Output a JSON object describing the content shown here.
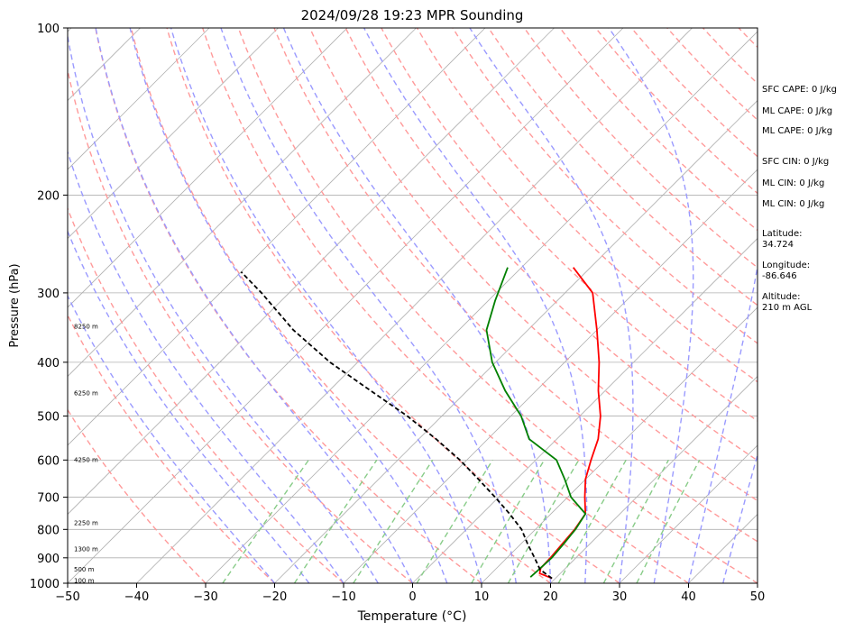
{
  "chart_data": {
    "type": "line",
    "title": "2024/09/28 19:23 MPR Sounding",
    "xlabel": "Temperature (°C)",
    "ylabel": "Pressure (hPa)",
    "xlim": [
      -50,
      50
    ],
    "ylim": [
      1000,
      100
    ],
    "y_scale": "log",
    "skew": true,
    "x_ticks": [
      "−50",
      "−40",
      "−30",
      "−20",
      "−10",
      "0",
      "10",
      "20",
      "30",
      "40",
      "50"
    ],
    "x_tick_values": [
      -50,
      -40,
      -30,
      -20,
      -10,
      0,
      10,
      20,
      30,
      40,
      50
    ],
    "y_ticks": [
      "1000",
      "900",
      "800",
      "700",
      "600",
      "500",
      "400",
      "300",
      "200",
      "100"
    ],
    "y_tick_values": [
      1000,
      900,
      800,
      700,
      600,
      500,
      400,
      300,
      200,
      100
    ],
    "grid": true,
    "series": [
      {
        "role": "temperature",
        "color": "#ff0000",
        "points": [
          [
            19.5,
            980
          ],
          [
            17,
            960
          ],
          [
            16.4,
            940
          ],
          [
            16.3,
            900
          ],
          [
            16,
            850
          ],
          [
            15.7,
            800
          ],
          [
            15,
            750
          ],
          [
            12.5,
            700
          ],
          [
            10,
            650
          ],
          [
            8,
            600
          ],
          [
            6,
            550
          ],
          [
            3,
            500
          ],
          [
            -1,
            450
          ],
          [
            -5,
            400
          ],
          [
            -10,
            350
          ],
          [
            -16,
            300
          ],
          [
            -22.5,
            270
          ]
        ]
      },
      {
        "role": "dewpoint",
        "color": "#008000",
        "points": [
          [
            16.2,
            975
          ],
          [
            16.3,
            950
          ],
          [
            16.5,
            900
          ],
          [
            16.2,
            850
          ],
          [
            15.8,
            800
          ],
          [
            15,
            750
          ],
          [
            10.5,
            700
          ],
          [
            7,
            650
          ],
          [
            3,
            600
          ],
          [
            -4,
            550
          ],
          [
            -8.5,
            500
          ],
          [
            -14.5,
            450
          ],
          [
            -20.5,
            400
          ],
          [
            -26,
            350
          ],
          [
            -29,
            310
          ],
          [
            -32,
            270
          ]
        ]
      },
      {
        "role": "parcel",
        "color": "#000000",
        "points": [
          [
            19.5,
            980
          ],
          [
            16.5,
            945
          ],
          [
            14,
            900
          ],
          [
            11,
            850
          ],
          [
            8,
            800
          ],
          [
            4,
            750
          ],
          [
            -0.5,
            700
          ],
          [
            -5.5,
            650
          ],
          [
            -11,
            600
          ],
          [
            -17.5,
            550
          ],
          [
            -25,
            500
          ],
          [
            -34,
            450
          ],
          [
            -44,
            400
          ],
          [
            -54,
            350
          ],
          [
            -64,
            300
          ],
          [
            -70,
            275
          ]
        ]
      }
    ],
    "height_labels": [
      "100 m",
      "500 m",
      "1300 m",
      "2250 m",
      "4250 m",
      "6250 m",
      "8250 m"
    ],
    "height_label_pressures": [
      990,
      945,
      870,
      780,
      600,
      455,
      345
    ]
  },
  "info": {
    "sfc_cape": "SFC CAPE: 0 J/kg",
    "ml_cape_1": "ML CAPE: 0 J/kg",
    "ml_cape_2": "ML CAPE: 0 J/kg",
    "sfc_cin": "SFC CIN: 0 J/kg",
    "ml_cin_1": "ML CIN: 0 J/kg",
    "ml_cin_2": "ML CIN: 0 J/kg",
    "latitude_label": "Latitude:",
    "latitude_value": "34.724",
    "longitude_label": "Longitude:",
    "longitude_value": "-86.646",
    "altitude_label": "Altitude:",
    "altitude_value": "210 m AGL"
  },
  "colors": {
    "isotherm": "#b0b0b0",
    "dry_adiabat": "#ff9a9a",
    "moist_adiabat": "#9a9aff",
    "mixing_ratio": "#88cc88",
    "temperature": "#ff0000",
    "dewpoint": "#008000",
    "parcel": "#000000"
  }
}
